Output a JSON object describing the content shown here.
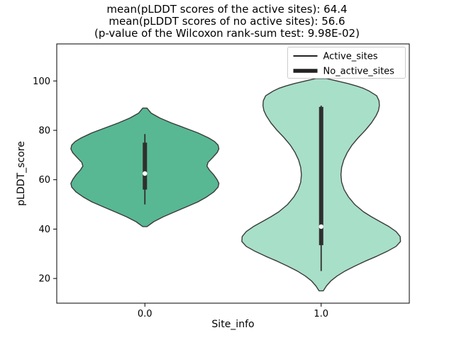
{
  "chart_data": {
    "type": "violin",
    "title_lines": [
      "mean(pLDDT scores of the active sites): 64.4",
      "mean(pLDDT scores of no active sites): 56.6",
      "(p-value of the Wilcoxon rank-sum test: 9.98E-02)"
    ],
    "xlabel": "Site_info",
    "ylabel": "pLDDT_score",
    "xlim": [
      -0.5,
      1.5
    ],
    "ylim": [
      10,
      115
    ],
    "ytick_values": [
      20,
      40,
      60,
      80,
      100
    ],
    "ytick_labels": [
      "20",
      "40",
      "60",
      "80",
      "100"
    ],
    "xtick_values": [
      0,
      1
    ],
    "xtick_labels": [
      "0.0",
      "1.0"
    ],
    "legend": {
      "items": [
        {
          "label": "Active_sites",
          "line_width": 2
        },
        {
          "label": "No_active_sites",
          "line_width": 5.5
        }
      ]
    },
    "colors": {
      "violin_active": "#58b893",
      "violin_no_active": "#a8dfc8",
      "edge": "#3a3a3a",
      "box": "#2f2f2f",
      "median_dot": "#ffffff",
      "axis": "#000000",
      "text": "#000000",
      "legend_border": "#cccccc",
      "background": "#ffffff"
    },
    "violins": [
      {
        "name": "Active_sites",
        "x": 0,
        "fill_key": "violin_active",
        "profile": [
          [
            41,
            0.012
          ],
          [
            43,
            0.05
          ],
          [
            45,
            0.105
          ],
          [
            47,
            0.17
          ],
          [
            49,
            0.235
          ],
          [
            51,
            0.3
          ],
          [
            53,
            0.35
          ],
          [
            55,
            0.39
          ],
          [
            57,
            0.415
          ],
          [
            58.5,
            0.42
          ],
          [
            60,
            0.41
          ],
          [
            62,
            0.39
          ],
          [
            64,
            0.365
          ],
          [
            65.5,
            0.352
          ],
          [
            67,
            0.358
          ],
          [
            69,
            0.385
          ],
          [
            71,
            0.41
          ],
          [
            72.5,
            0.42
          ],
          [
            74,
            0.415
          ],
          [
            75.5,
            0.395
          ],
          [
            77,
            0.36
          ],
          [
            79,
            0.3
          ],
          [
            81,
            0.225
          ],
          [
            83,
            0.15
          ],
          [
            85,
            0.085
          ],
          [
            87,
            0.035
          ],
          [
            89,
            0.012
          ]
        ],
        "box": {
          "whisker_low": 50,
          "whisker_high": 78.5,
          "q1": 56,
          "q3": 75,
          "median": 62.5
        }
      },
      {
        "name": "No_active_sites",
        "x": 1,
        "fill_key": "violin_no_active",
        "profile": [
          [
            15,
            0.012
          ],
          [
            17,
            0.03
          ],
          [
            19,
            0.055
          ],
          [
            21,
            0.09
          ],
          [
            23,
            0.135
          ],
          [
            25,
            0.19
          ],
          [
            27,
            0.25
          ],
          [
            29,
            0.315
          ],
          [
            31,
            0.375
          ],
          [
            33,
            0.425
          ],
          [
            35,
            0.45
          ],
          [
            37,
            0.448
          ],
          [
            39,
            0.425
          ],
          [
            41,
            0.385
          ],
          [
            43,
            0.335
          ],
          [
            45,
            0.285
          ],
          [
            47,
            0.24
          ],
          [
            50,
            0.19
          ],
          [
            53,
            0.155
          ],
          [
            56,
            0.13
          ],
          [
            59,
            0.116
          ],
          [
            62,
            0.112
          ],
          [
            65,
            0.116
          ],
          [
            68,
            0.128
          ],
          [
            71,
            0.148
          ],
          [
            74,
            0.175
          ],
          [
            77,
            0.21
          ],
          [
            80,
            0.25
          ],
          [
            83,
            0.285
          ],
          [
            86,
            0.312
          ],
          [
            88,
            0.325
          ],
          [
            90,
            0.33
          ],
          [
            92,
            0.328
          ],
          [
            94,
            0.315
          ],
          [
            96,
            0.27
          ],
          [
            97,
            0.24
          ],
          [
            98,
            0.2
          ],
          [
            99,
            0.15
          ],
          [
            100,
            0.09
          ],
          [
            101,
            0.03
          ]
        ],
        "box": {
          "whisker_low": 23,
          "whisker_high": 90,
          "q1": 33.5,
          "q3": 89.5,
          "median": 41
        }
      }
    ]
  }
}
